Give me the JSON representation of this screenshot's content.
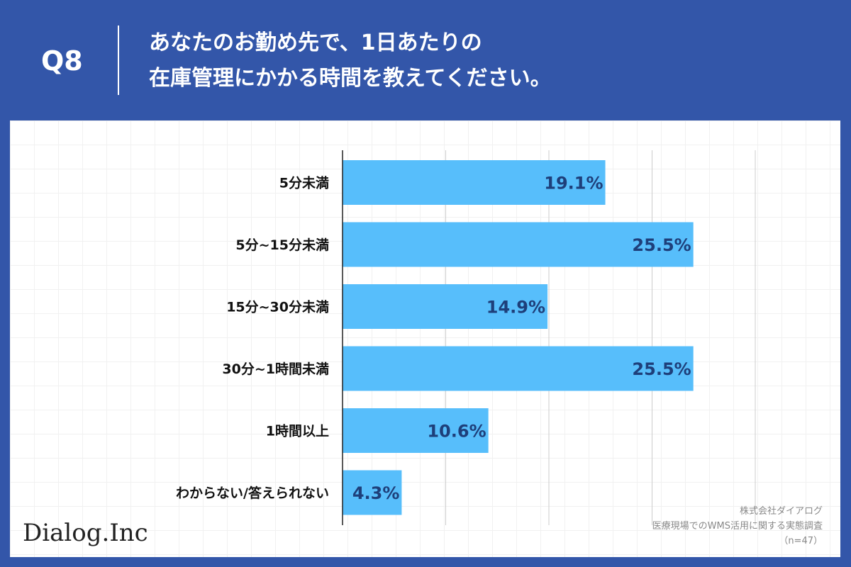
{
  "header": {
    "question_number": "Q8",
    "question_line1": "あなたのお勤め先で、1日あたりの",
    "question_line2": "在庫管理にかかる時間を教えてください。"
  },
  "branding": {
    "logo_text": "Dialog.Inc"
  },
  "source": {
    "company": "株式会社ダイアログ",
    "survey": "医療現場でのWMS活用に関する実態調査",
    "sample": "（n=47）"
  },
  "colors": {
    "background": "#3356a9",
    "bar": "#57befb",
    "value_label": "#1e3f7a",
    "category_label": "#111111",
    "grid": "#cccccc"
  },
  "chart_data": {
    "type": "bar",
    "orientation": "horizontal",
    "categories": [
      "5分未満",
      "5分~15分未満",
      "15分~30分未満",
      "30分~1時間未満",
      "1時間以上",
      "わからない/答えられない"
    ],
    "values": [
      19.1,
      25.5,
      14.9,
      25.5,
      10.6,
      4.3
    ],
    "value_labels": [
      "19.1%",
      "25.5%",
      "14.9%",
      "25.5%",
      "10.6%",
      "4.3%"
    ],
    "unit": "%",
    "xlim": [
      0,
      30
    ],
    "grid": true,
    "title": "",
    "xlabel": "",
    "ylabel": ""
  }
}
